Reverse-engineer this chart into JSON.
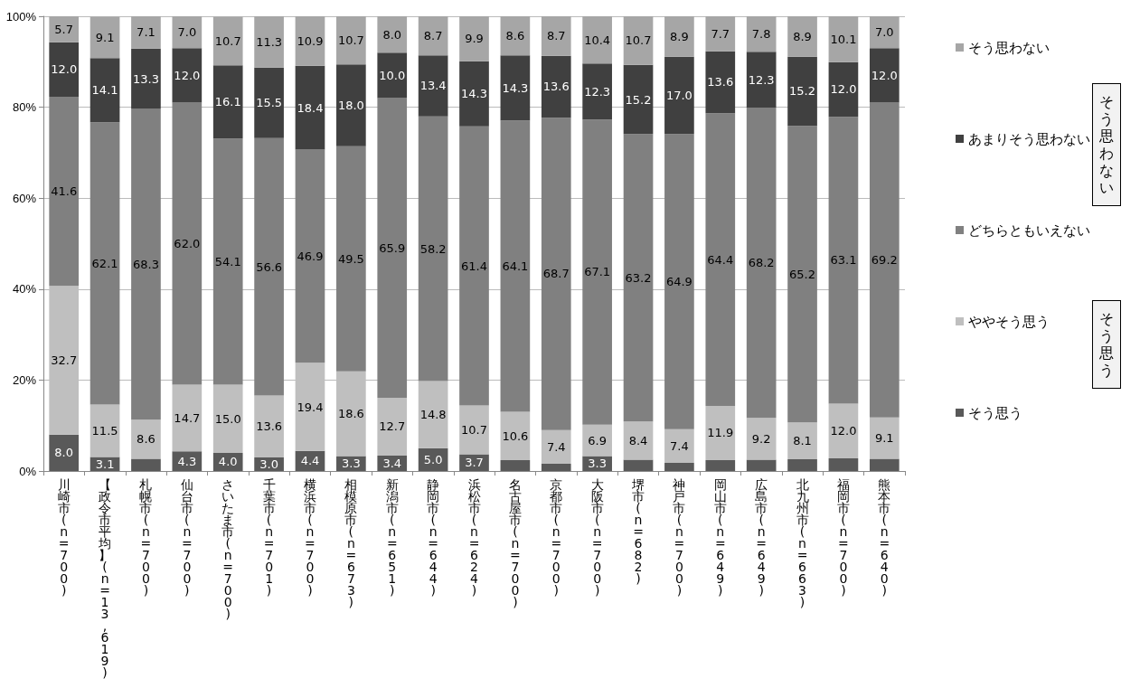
{
  "chart_data": {
    "type": "bar",
    "stacked": true,
    "categories": [
      "川崎市(n=700)",
      "【政令市平均】(n=13,619)",
      "札幌市(n=700)",
      "仙台市(n=700)",
      "さいたま市(n=700)",
      "千葉市(n=701)",
      "横浜市(n=700)",
      "相模原市(n=673)",
      "新潟市(n=651)",
      "静岡市(n=644)",
      "浜松市(n=624)",
      "名古屋市(n=700)",
      "京都市(n=700)",
      "大阪市(n=700)",
      "堺市(n=682)",
      "神戸市(n=700)",
      "岡山市(n=649)",
      "広島市(n=649)",
      "北九州市(n=663)",
      "福岡市(n=700)",
      "熊本市(n=640)"
    ],
    "series": [
      {
        "name": "そう思う",
        "color": "#595959",
        "values": [
          8.0,
          3.1,
          2.7,
          4.3,
          4.0,
          3.0,
          4.4,
          3.3,
          3.4,
          5.0,
          3.7,
          2.4,
          1.6,
          3.3,
          2.5,
          1.8,
          2.4,
          2.5,
          2.6,
          2.8,
          2.7
        ],
        "value_labels": [
          "8.0",
          "3.1",
          null,
          "4.3",
          "4.0",
          "3.0",
          "4.4",
          "3.3",
          "3.4",
          "5.0",
          "3.7",
          null,
          null,
          "3.3",
          null,
          null,
          null,
          null,
          null,
          null,
          null
        ]
      },
      {
        "name": "ややそう思う",
        "color": "#bfbfbf",
        "values": [
          32.7,
          11.5,
          8.6,
          14.7,
          15.0,
          13.6,
          19.4,
          18.6,
          12.7,
          14.8,
          10.7,
          10.6,
          7.4,
          6.9,
          8.4,
          7.4,
          11.9,
          9.2,
          8.1,
          12.0,
          9.1
        ],
        "value_labels": [
          "32.7",
          "11.5",
          "8.6",
          "14.7",
          "15.0",
          "13.6",
          "19.4",
          "18.6",
          "12.7",
          "14.8",
          "10.7",
          "10.6",
          "7.4",
          "6.9",
          "8.4",
          "7.4",
          "11.9",
          "9.2",
          "8.1",
          "12.0",
          "9.1"
        ]
      },
      {
        "name": "どちらともいえない",
        "color": "#808080",
        "values": [
          41.6,
          62.1,
          68.3,
          62.0,
          54.1,
          56.6,
          46.9,
          49.5,
          65.9,
          58.2,
          61.4,
          64.1,
          68.7,
          67.1,
          63.2,
          64.9,
          64.4,
          68.2,
          65.2,
          63.1,
          69.2
        ],
        "value_labels": [
          "41.6",
          "62.1",
          "68.3",
          "62.0",
          "54.1",
          "56.6",
          "46.9",
          "49.5",
          "65.9",
          "58.2",
          "61.4",
          "64.1",
          "68.7",
          "67.1",
          "63.2",
          "64.9",
          "64.4",
          "68.2",
          "65.2",
          "63.1",
          "69.2"
        ]
      },
      {
        "name": "あまりそう思わない",
        "color": "#404040",
        "values": [
          12.0,
          14.1,
          13.3,
          12.0,
          16.1,
          15.5,
          18.4,
          18.0,
          10.0,
          13.4,
          14.3,
          14.3,
          13.6,
          12.3,
          15.2,
          17.0,
          13.6,
          12.3,
          15.2,
          12.0,
          12.0
        ],
        "value_labels": [
          "12.0",
          "14.1",
          "13.3",
          "12.0",
          "16.1",
          "15.5",
          "18.4",
          "18.0",
          "10.0",
          "13.4",
          "14.3",
          "14.3",
          "13.6",
          "12.3",
          "15.2",
          "17.0",
          "13.6",
          "12.3",
          "15.2",
          "12.0",
          "12.0"
        ]
      },
      {
        "name": "そう思わない",
        "color": "#a6a6a6",
        "values": [
          5.7,
          9.1,
          7.1,
          7.0,
          10.7,
          11.3,
          10.9,
          10.7,
          8.0,
          8.7,
          9.9,
          8.6,
          8.7,
          10.4,
          10.7,
          8.9,
          7.7,
          7.8,
          8.9,
          10.1,
          7.0
        ],
        "value_labels": [
          "5.7",
          "9.1",
          "7.1",
          "7.0",
          "10.7",
          "11.3",
          "10.9",
          "10.7",
          "8.0",
          "8.7",
          "9.9",
          "8.6",
          "8.7",
          "10.4",
          "10.7",
          "8.9",
          "7.7",
          "7.8",
          "8.9",
          "10.1",
          "7.0"
        ]
      }
    ],
    "ylim": [
      0,
      100
    ],
    "yticks": [
      {
        "value": 0,
        "label": "0%"
      },
      {
        "value": 20,
        "label": "20%"
      },
      {
        "value": 40,
        "label": "40%"
      },
      {
        "value": 60,
        "label": "60%"
      },
      {
        "value": 80,
        "label": "80%"
      },
      {
        "value": 100,
        "label": "100%"
      }
    ],
    "grid": "y",
    "legend": "right",
    "annotations": [
      "そう思わない",
      "そう思う"
    ]
  }
}
